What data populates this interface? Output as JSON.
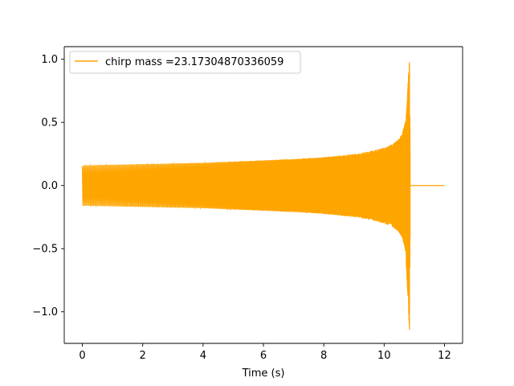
{
  "chart_data": {
    "type": "line",
    "title": "",
    "xlabel": "Time (s)",
    "ylabel": "",
    "xlim": [
      -0.6,
      12.6
    ],
    "ylim": [
      -1.25,
      1.1
    ],
    "xticks": [
      0,
      2,
      4,
      6,
      8,
      10,
      12
    ],
    "xtick_labels": [
      "0",
      "2",
      "4",
      "6",
      "8",
      "10",
      "12"
    ],
    "yticks": [
      -1.0,
      -0.5,
      0.0,
      0.5,
      1.0
    ],
    "ytick_labels": [
      "−1.0",
      "−0.5",
      "0.0",
      "0.5",
      "1.0"
    ],
    "grid": false,
    "legend": {
      "position": "top-left",
      "entries": [
        "chirp mass =23.17304870336059"
      ]
    },
    "series": [
      {
        "name": "chirp mass =23.17304870336059",
        "color": "#FFA500",
        "description_of_shape": "chirp",
        "x": [
          0,
          1,
          2,
          3,
          4,
          5,
          6,
          7,
          8,
          9,
          9.5,
          10,
          10.3,
          10.5,
          10.6,
          10.7,
          10.75,
          10.8,
          10.84,
          10.87,
          10.9,
          12.0
        ],
        "envelope_upper": [
          0.16,
          0.165,
          0.17,
          0.175,
          0.18,
          0.19,
          0.2,
          0.21,
          0.225,
          0.25,
          0.27,
          0.3,
          0.33,
          0.37,
          0.41,
          0.5,
          0.6,
          0.85,
          1.0,
          0.0,
          0.0,
          0.0
        ],
        "envelope_lower": [
          -0.16,
          -0.165,
          -0.17,
          -0.175,
          -0.18,
          -0.19,
          -0.2,
          -0.21,
          -0.225,
          -0.25,
          -0.27,
          -0.3,
          -0.33,
          -0.37,
          -0.41,
          -0.5,
          -0.7,
          -0.95,
          -1.15,
          0.0,
          0.0,
          0.0
        ]
      }
    ]
  }
}
